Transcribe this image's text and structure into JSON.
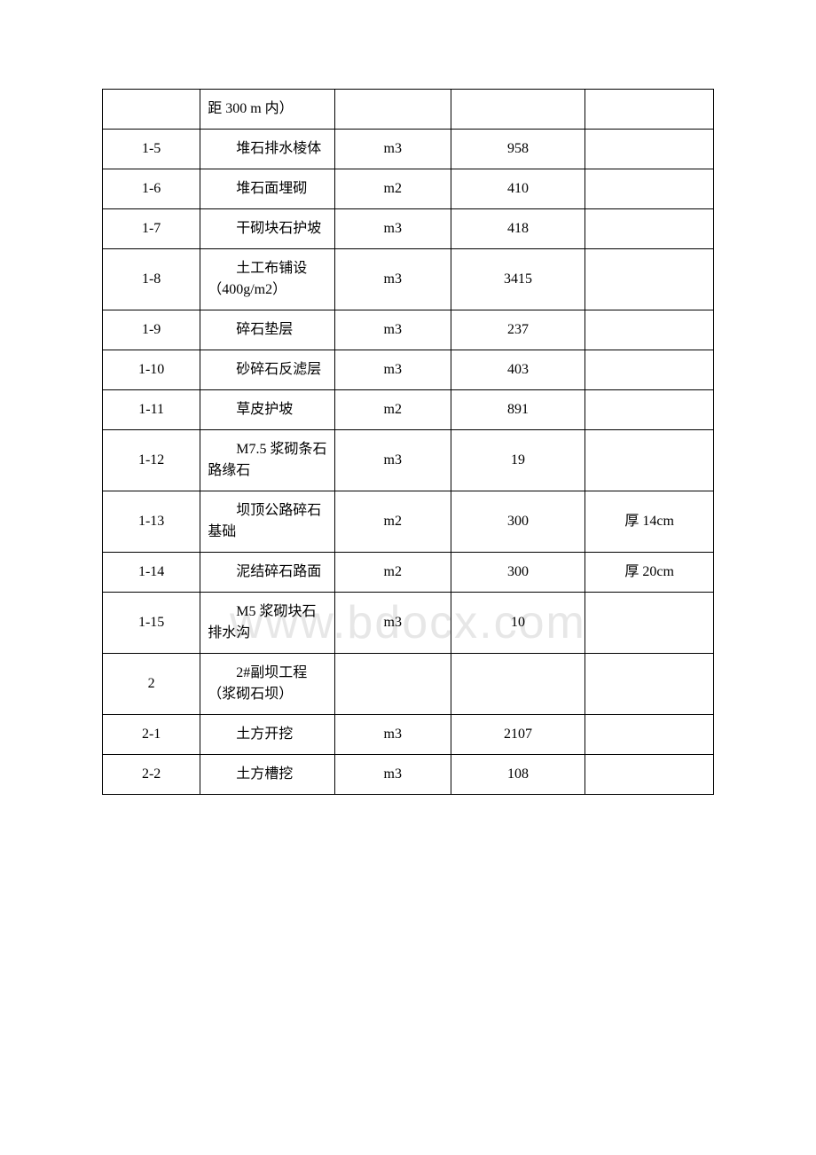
{
  "watermark": "www.bdocx.com",
  "table": {
    "columns": [
      {
        "width": "16%",
        "align": "center"
      },
      {
        "width": "22%",
        "align": "left"
      },
      {
        "width": "19%",
        "align": "center"
      },
      {
        "width": "22%",
        "align": "center"
      },
      {
        "width": "21%",
        "align": "center"
      }
    ],
    "border_color": "#000000",
    "font_family": "SimSun",
    "font_size": 16,
    "text_color": "#000000",
    "background_color": "#ffffff",
    "rows": [
      {
        "c1": "",
        "c2": "距 300 m 内）",
        "c2_indent": false,
        "c3": "",
        "c4": "",
        "c5": ""
      },
      {
        "c1": "1-5",
        "c2": "堆石排水棱体",
        "c2_indent": true,
        "c3": "m3",
        "c4": "958",
        "c5": ""
      },
      {
        "c1": "1-6",
        "c2": "堆石面埋砌",
        "c2_indent": true,
        "c3": "m2",
        "c4": "410",
        "c5": ""
      },
      {
        "c1": "1-7",
        "c2": "干砌块石护坡",
        "c2_indent": true,
        "c3": "m3",
        "c4": "418",
        "c5": ""
      },
      {
        "c1": "1-8",
        "c2": "土工布铺设（400g/m2）",
        "c2_indent": true,
        "c3": "m3",
        "c4": "3415",
        "c5": ""
      },
      {
        "c1": "1-9",
        "c2": "碎石垫层",
        "c2_indent": true,
        "c3": "m3",
        "c4": "237",
        "c5": ""
      },
      {
        "c1": "1-10",
        "c2": "砂碎石反滤层",
        "c2_indent": true,
        "c3": "m3",
        "c4": "403",
        "c5": ""
      },
      {
        "c1": "1-11",
        "c2": "草皮护坡",
        "c2_indent": true,
        "c3": "m2",
        "c4": "891",
        "c5": ""
      },
      {
        "c1": "1-12",
        "c2": "M7.5 浆砌条石路缘石",
        "c2_indent": true,
        "c3": "m3",
        "c4": "19",
        "c5": ""
      },
      {
        "c1": "1-13",
        "c2": "坝顶公路碎石基础",
        "c2_indent": true,
        "c3": "m2",
        "c4": "300",
        "c5": "厚 14cm"
      },
      {
        "c1": "1-14",
        "c2": "泥结碎石路面",
        "c2_indent": true,
        "c3": "m2",
        "c4": "300",
        "c5": "厚 20cm"
      },
      {
        "c1": "1-15",
        "c2": "M5 浆砌块石排水沟",
        "c2_indent": true,
        "c3": "m3",
        "c4": "10",
        "c5": ""
      },
      {
        "c1": "2",
        "c2": "2#副坝工程（浆砌石坝）",
        "c2_indent": true,
        "c3": "",
        "c4": "",
        "c5": ""
      },
      {
        "c1": "2-1",
        "c2": "土方开挖",
        "c2_indent": true,
        "c3": "m3",
        "c4": "2107",
        "c5": ""
      },
      {
        "c1": "2-2",
        "c2": "土方槽挖",
        "c2_indent": true,
        "c3": "m3",
        "c4": "108",
        "c5": ""
      }
    ]
  }
}
